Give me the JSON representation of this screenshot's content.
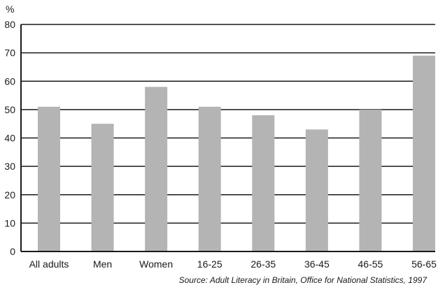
{
  "chart_data": {
    "type": "bar",
    "title": "",
    "xlabel": "",
    "ylabel": "%",
    "ylim": [
      0,
      80
    ],
    "yticks": [
      0,
      10,
      20,
      30,
      40,
      50,
      60,
      70,
      80
    ],
    "grid": true,
    "categories": [
      "All adults",
      "Men",
      "Women",
      "16-25",
      "26-35",
      "36-45",
      "46-55",
      "56-65"
    ],
    "values": [
      51,
      45,
      58,
      51,
      48,
      43,
      50,
      69
    ],
    "bar_color": "#b4b4b4",
    "grid_color": "#1a1a1a",
    "source": "Source: Adult Literacy in Britain, Office for National Statistics, 1997"
  }
}
